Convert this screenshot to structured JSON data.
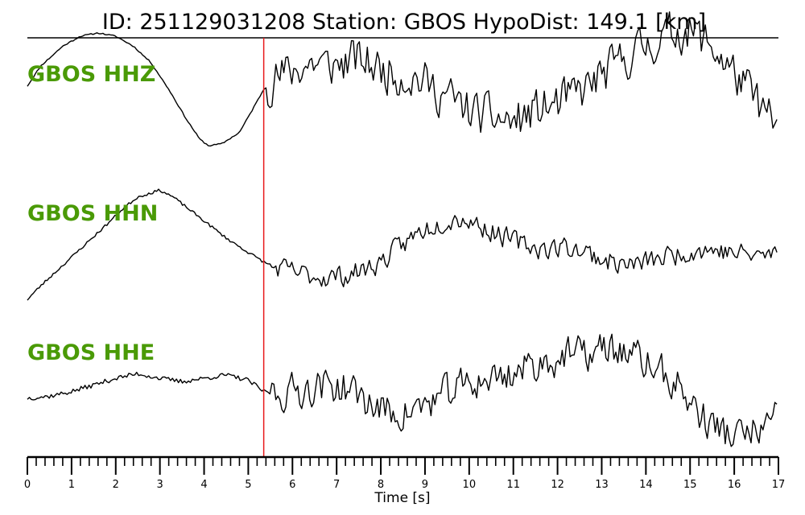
{
  "chart_data": {
    "type": "line",
    "title": "ID: 251129031208   Station: GBOS   HypoDist:   149.1 [km]",
    "xlabel": "Time [s]",
    "xlim": [
      0,
      17
    ],
    "major_ticks": [
      0,
      1,
      2,
      3,
      4,
      5,
      6,
      7,
      8,
      9,
      10,
      11,
      12,
      13,
      14,
      15,
      16,
      17
    ],
    "minor_tick_step": 0.2,
    "marker_time": 5.35,
    "colors": {
      "label": "#4a9a06",
      "marker": "#e8191b",
      "trace": "#000000"
    },
    "traces": [
      {
        "name": "GBOS HHZ",
        "ylim": [
          -1,
          1
        ],
        "points": [
          [
            0,
            0.25
          ],
          [
            0.3,
            0.55
          ],
          [
            0.8,
            0.85
          ],
          [
            1.2,
            1.0
          ],
          [
            1.6,
            1.05
          ],
          [
            2.0,
            1.0
          ],
          [
            2.4,
            0.85
          ],
          [
            2.8,
            0.6
          ],
          [
            3.2,
            0.2
          ],
          [
            3.6,
            -0.25
          ],
          [
            3.9,
            -0.55
          ],
          [
            4.1,
            -0.65
          ],
          [
            4.4,
            -0.62
          ],
          [
            4.8,
            -0.45
          ],
          [
            5.1,
            -0.1
          ],
          [
            5.35,
            0.2
          ],
          [
            5.6,
            0.35
          ],
          [
            5.9,
            0.45
          ],
          [
            6.2,
            0.55
          ],
          [
            6.5,
            0.6
          ],
          [
            6.8,
            0.55
          ],
          [
            7.1,
            0.58
          ],
          [
            7.4,
            0.65
          ],
          [
            7.7,
            0.6
          ],
          [
            8.0,
            0.5
          ],
          [
            8.3,
            0.45
          ],
          [
            8.6,
            0.4
          ],
          [
            8.9,
            0.35
          ],
          [
            9.2,
            0.2
          ],
          [
            9.5,
            0.1
          ],
          [
            9.8,
            -0.05
          ],
          [
            10.1,
            -0.15
          ],
          [
            10.4,
            -0.2
          ],
          [
            10.7,
            -0.25
          ],
          [
            11.0,
            -0.3
          ],
          [
            11.3,
            -0.2
          ],
          [
            11.6,
            -0.1
          ],
          [
            11.9,
            -0.05
          ],
          [
            12.2,
            0.05
          ],
          [
            12.5,
            0.15
          ],
          [
            12.8,
            0.3
          ],
          [
            13.1,
            0.45
          ],
          [
            13.4,
            0.6
          ],
          [
            13.7,
            0.75
          ],
          [
            14.0,
            0.85
          ],
          [
            14.3,
            0.95
          ],
          [
            14.6,
            1.05
          ],
          [
            14.9,
            1.1
          ],
          [
            15.2,
            1.0
          ],
          [
            15.5,
            0.85
          ],
          [
            15.8,
            0.6
          ],
          [
            16.1,
            0.35
          ],
          [
            16.4,
            0.1
          ],
          [
            16.7,
            -0.15
          ],
          [
            17.0,
            -0.45
          ]
        ],
        "noise": {
          "start": 5.4,
          "amp": 0.45,
          "step": 0.045,
          "seed": 11,
          "pre_amp": 0.01
        }
      },
      {
        "name": "GBOS HHN",
        "ylim": [
          -1,
          1
        ],
        "points": [
          [
            0,
            -0.85
          ],
          [
            0.3,
            -0.65
          ],
          [
            0.8,
            -0.35
          ],
          [
            1.3,
            -0.05
          ],
          [
            1.8,
            0.25
          ],
          [
            2.2,
            0.5
          ],
          [
            2.5,
            0.65
          ],
          [
            2.75,
            0.7
          ],
          [
            3.0,
            0.75
          ],
          [
            3.3,
            0.65
          ],
          [
            3.7,
            0.45
          ],
          [
            4.1,
            0.25
          ],
          [
            4.5,
            0.05
          ],
          [
            4.9,
            -0.12
          ],
          [
            5.35,
            -0.3
          ],
          [
            5.7,
            -0.4
          ],
          [
            6.0,
            -0.45
          ],
          [
            6.4,
            -0.5
          ],
          [
            6.8,
            -0.52
          ],
          [
            7.2,
            -0.5
          ],
          [
            7.6,
            -0.42
          ],
          [
            8.0,
            -0.3
          ],
          [
            8.3,
            -0.15
          ],
          [
            8.6,
            0.0
          ],
          [
            8.9,
            0.15
          ],
          [
            9.2,
            0.25
          ],
          [
            9.5,
            0.32
          ],
          [
            9.8,
            0.35
          ],
          [
            10.1,
            0.28
          ],
          [
            10.4,
            0.18
          ],
          [
            10.7,
            0.1
          ],
          [
            11.0,
            0.0
          ],
          [
            11.3,
            -0.05
          ],
          [
            11.6,
            -0.1
          ],
          [
            11.9,
            -0.1
          ],
          [
            12.2,
            -0.08
          ],
          [
            12.5,
            -0.12
          ],
          [
            12.8,
            -0.2
          ],
          [
            13.1,
            -0.28
          ],
          [
            13.4,
            -0.32
          ],
          [
            13.7,
            -0.35
          ],
          [
            14.0,
            -0.3
          ],
          [
            14.3,
            -0.25
          ],
          [
            14.6,
            -0.2
          ],
          [
            14.9,
            -0.15
          ],
          [
            15.2,
            -0.12
          ],
          [
            15.5,
            -0.12
          ],
          [
            15.8,
            -0.15
          ],
          [
            16.1,
            -0.18
          ],
          [
            16.4,
            -0.2
          ],
          [
            16.7,
            -0.2
          ],
          [
            17.0,
            -0.18
          ]
        ],
        "noise": {
          "start": 5.5,
          "amp": 0.22,
          "step": 0.045,
          "seed": 23,
          "pre_amp": 0.02
        }
      },
      {
        "name": "GBOS HHE",
        "ylim": [
          -1,
          1
        ],
        "points": [
          [
            0,
            -0.15
          ],
          [
            0.5,
            -0.12
          ],
          [
            1.0,
            -0.05
          ],
          [
            1.5,
            0.05
          ],
          [
            2.0,
            0.15
          ],
          [
            2.5,
            0.22
          ],
          [
            3.0,
            0.15
          ],
          [
            3.5,
            0.1
          ],
          [
            4.0,
            0.15
          ],
          [
            4.5,
            0.2
          ],
          [
            5.0,
            0.12
          ],
          [
            5.35,
            -0.05
          ],
          [
            5.7,
            -0.08
          ],
          [
            6.0,
            -0.05
          ],
          [
            6.3,
            0.0
          ],
          [
            6.6,
            0.03
          ],
          [
            6.9,
            0.05
          ],
          [
            7.2,
            0.0
          ],
          [
            7.5,
            -0.1
          ],
          [
            7.8,
            -0.25
          ],
          [
            8.1,
            -0.35
          ],
          [
            8.4,
            -0.38
          ],
          [
            8.7,
            -0.35
          ],
          [
            9.0,
            -0.25
          ],
          [
            9.3,
            -0.15
          ],
          [
            9.6,
            -0.05
          ],
          [
            9.9,
            0.05
          ],
          [
            10.2,
            0.1
          ],
          [
            10.5,
            0.15
          ],
          [
            10.8,
            0.2
          ],
          [
            11.1,
            0.25
          ],
          [
            11.4,
            0.35
          ],
          [
            11.7,
            0.4
          ],
          [
            12.0,
            0.45
          ],
          [
            12.3,
            0.5
          ],
          [
            12.6,
            0.5
          ],
          [
            12.9,
            0.55
          ],
          [
            13.2,
            0.6
          ],
          [
            13.5,
            0.55
          ],
          [
            13.8,
            0.45
          ],
          [
            14.1,
            0.35
          ],
          [
            14.4,
            0.2
          ],
          [
            14.7,
            0.05
          ],
          [
            15.0,
            -0.2
          ],
          [
            15.3,
            -0.45
          ],
          [
            15.6,
            -0.6
          ],
          [
            15.9,
            -0.7
          ],
          [
            16.2,
            -0.72
          ],
          [
            16.5,
            -0.65
          ],
          [
            16.8,
            -0.55
          ],
          [
            17.0,
            -0.45
          ]
        ],
        "noise": {
          "start": 5.5,
          "amp": 0.38,
          "step": 0.045,
          "seed": 37,
          "pre_amp": 0.035
        }
      }
    ]
  }
}
